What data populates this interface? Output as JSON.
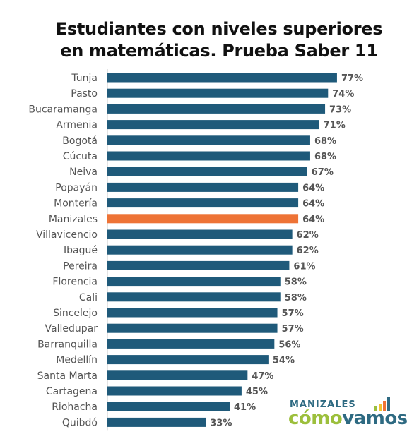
{
  "title_lines": [
    "Estudiantes con niveles superiores",
    "en matemáticas. Prueba Saber 11"
  ],
  "chart_data": {
    "type": "bar",
    "orientation": "horizontal",
    "title": "Estudiantes con niveles superiores en matemáticas. Prueba Saber 11",
    "categories": [
      "Tunja",
      "Pasto",
      "Bucaramanga",
      "Armenia",
      "Bogotá",
      "Cúcuta",
      "Neiva",
      "Popayán",
      "Montería",
      "Manizales",
      "Villavicencio",
      "Ibagué",
      "Pereira",
      "Florencia",
      "Cali",
      "Sincelejo",
      "Valledupar",
      "Barranquilla",
      "Medellín",
      "Santa Marta",
      "Cartagena",
      "Riohacha",
      "Quibdó"
    ],
    "values": [
      77,
      74,
      73,
      71,
      68,
      68,
      67,
      64,
      64,
      64,
      62,
      62,
      61,
      58,
      58,
      57,
      57,
      56,
      54,
      47,
      45,
      41,
      33
    ],
    "value_labels": [
      "77%",
      "74%",
      "73%",
      "71%",
      "68%",
      "68%",
      "67%",
      "64%",
      "64%",
      "64%",
      "62%",
      "62%",
      "61%",
      "58%",
      "58%",
      "57%",
      "57%",
      "56%",
      "54%",
      "47%",
      "45%",
      "41%",
      "33%"
    ],
    "unit": "%",
    "highlight": "Manizales",
    "colors": {
      "bar": "#1f5a7a",
      "highlight": "#ee7336",
      "axis": "#c8c8c8"
    },
    "xlim": [
      0,
      100
    ],
    "grid": false,
    "legend": "none"
  },
  "logo": {
    "line1": "MANIZALES",
    "como": "cómo",
    "vamos": "vamos",
    "bar_colors": [
      "#9cbf3c",
      "#f2c230",
      "#ee7336",
      "#2e6a82"
    ]
  }
}
